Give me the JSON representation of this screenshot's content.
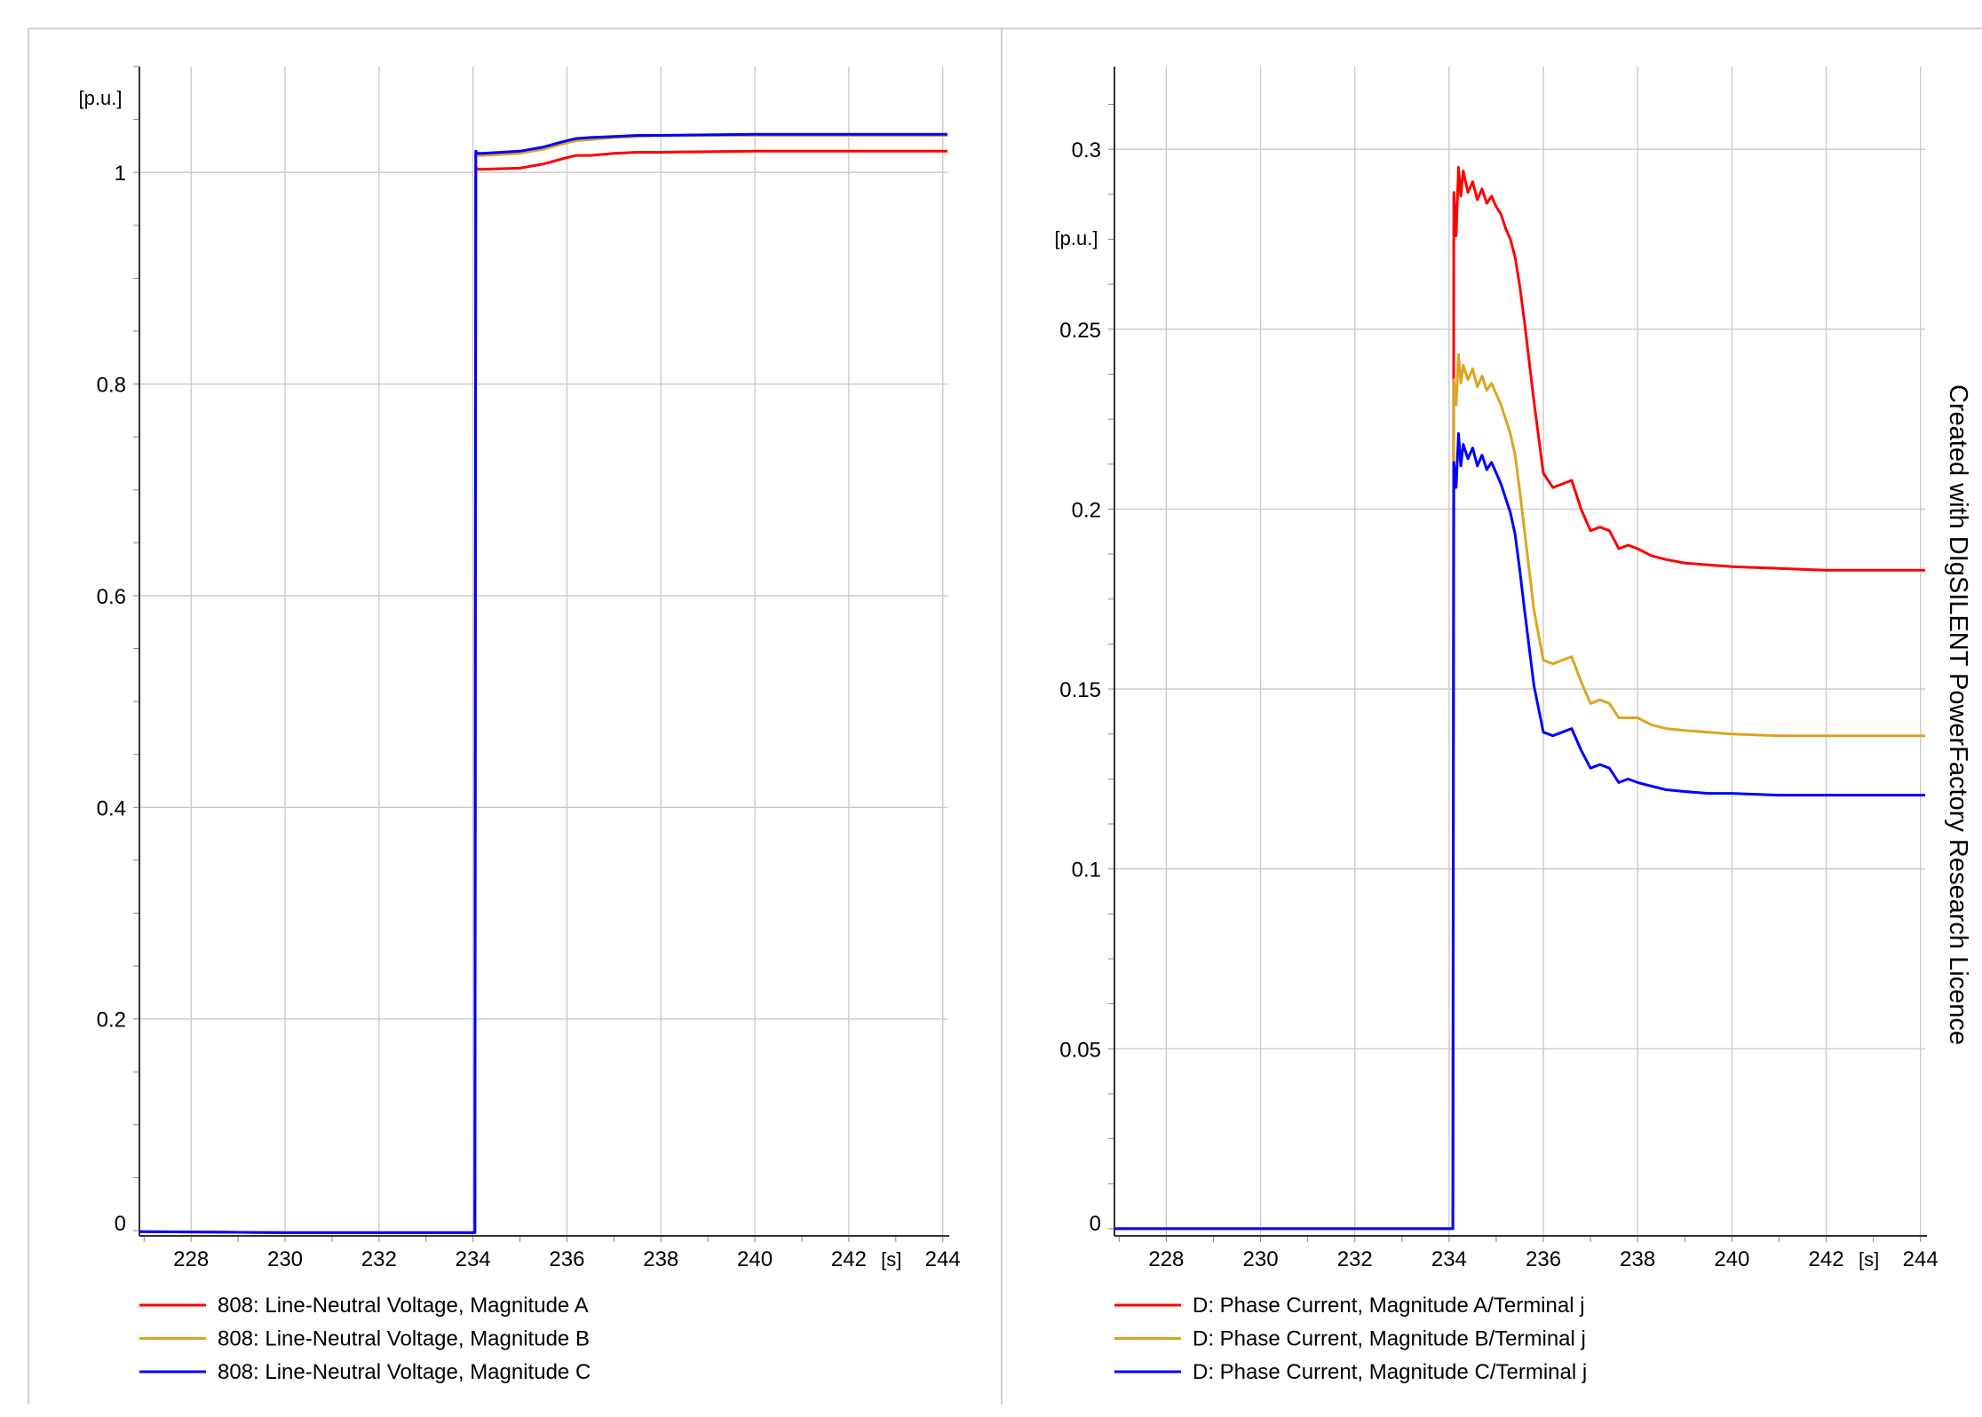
{
  "watermark": "Created with DIgSILENT PowerFactory Research Licence",
  "chart_data": [
    {
      "type": "line",
      "xunit": "[s]",
      "yunit": "[p.u.]",
      "xlim": [
        226.9,
        244.1
      ],
      "ylim": [
        -0.005,
        1.1
      ],
      "x_ticks": [
        "228",
        "230",
        "232",
        "234",
        "236",
        "238",
        "240",
        "242",
        "244"
      ],
      "y_ticks": [
        "0",
        "0.2",
        "0.4",
        "0.6",
        "0.8",
        "1"
      ],
      "grid": true,
      "legend_position": "bottom",
      "series": [
        {
          "name": "808: Line-Neutral Voltage, Magnitude A",
          "color": "#ff0000",
          "x": [
            226.9,
            230,
            232,
            233.9,
            234.0,
            234.04,
            234.06,
            234.1,
            234.2,
            235.0,
            235.5,
            236.0,
            236.2,
            236.5,
            237.0,
            237.5,
            238.0,
            240.0,
            242.0,
            244.1
          ],
          "y": [
            -0.001,
            -0.002,
            -0.002,
            -0.002,
            -0.002,
            -0.002,
            1.005,
            1.003,
            1.003,
            1.004,
            1.008,
            1.014,
            1.016,
            1.016,
            1.018,
            1.019,
            1.019,
            1.02,
            1.02,
            1.02
          ]
        },
        {
          "name": "808: Line-Neutral Voltage, Magnitude B",
          "color": "#daa520",
          "x": [
            226.9,
            230,
            232,
            233.9,
            234.0,
            234.04,
            234.06,
            234.1,
            234.2,
            235.0,
            235.5,
            236.0,
            236.2,
            236.5,
            237.0,
            237.5,
            238.0,
            240.0,
            242.0,
            244.1
          ],
          "y": [
            -0.001,
            -0.002,
            -0.002,
            -0.002,
            -0.002,
            -0.002,
            1.018,
            1.016,
            1.016,
            1.018,
            1.022,
            1.028,
            1.03,
            1.031,
            1.033,
            1.034,
            1.035,
            1.035,
            1.035,
            1.035
          ]
        },
        {
          "name": "808: Line-Neutral Voltage, Magnitude C",
          "color": "#0000ff",
          "x": [
            226.9,
            230,
            232,
            233.9,
            234.0,
            234.04,
            234.06,
            234.1,
            234.2,
            235.0,
            235.5,
            236.0,
            236.2,
            236.5,
            237.0,
            237.5,
            238.0,
            240.0,
            242.0,
            244.1
          ],
          "y": [
            -0.001,
            -0.002,
            -0.002,
            -0.002,
            -0.002,
            -0.002,
            1.02,
            1.018,
            1.018,
            1.02,
            1.024,
            1.03,
            1.032,
            1.033,
            1.034,
            1.035,
            1.035,
            1.036,
            1.036,
            1.036
          ]
        }
      ]
    },
    {
      "type": "line",
      "xunit": "[s]",
      "yunit": "[p.u.]",
      "xlim": [
        226.9,
        244.1
      ],
      "ylim": [
        -0.002,
        0.323
      ],
      "x_ticks": [
        "228",
        "230",
        "232",
        "234",
        "236",
        "238",
        "240",
        "242",
        "244"
      ],
      "y_ticks": [
        "0",
        "0.05",
        "0.1",
        "0.15",
        "0.2",
        "0.25",
        "0.3"
      ],
      "grid": true,
      "legend_position": "bottom",
      "series": [
        {
          "name": "D: Phase Current, Magnitude A/Terminal j",
          "color": "#ff0000",
          "x": [
            226.9,
            233.9,
            234.08,
            234.1,
            234.15,
            234.2,
            234.25,
            234.3,
            234.4,
            234.5,
            234.6,
            234.7,
            234.8,
            234.9,
            235.0,
            235.1,
            235.2,
            235.3,
            235.4,
            235.5,
            235.6,
            235.8,
            236.0,
            236.2,
            236.4,
            236.6,
            236.8,
            237.0,
            237.2,
            237.4,
            237.6,
            237.8,
            238.0,
            238.3,
            238.6,
            239.0,
            239.5,
            240.0,
            241.0,
            242.0,
            243.0,
            244.1
          ],
          "y": [
            0,
            0,
            0,
            0.288,
            0.276,
            0.295,
            0.287,
            0.294,
            0.288,
            0.291,
            0.286,
            0.289,
            0.285,
            0.287,
            0.284,
            0.282,
            0.278,
            0.275,
            0.27,
            0.262,
            0.252,
            0.23,
            0.21,
            0.206,
            0.207,
            0.208,
            0.2,
            0.194,
            0.195,
            0.194,
            0.189,
            0.19,
            0.189,
            0.187,
            0.186,
            0.185,
            0.1845,
            0.184,
            0.1835,
            0.183,
            0.183,
            0.183
          ]
        },
        {
          "name": "D: Phase Current, Magnitude B/Terminal j",
          "color": "#daa520",
          "x": [
            226.9,
            233.9,
            234.08,
            234.1,
            234.15,
            234.2,
            234.25,
            234.3,
            234.4,
            234.5,
            234.6,
            234.7,
            234.8,
            234.9,
            235.0,
            235.1,
            235.2,
            235.3,
            235.4,
            235.5,
            235.6,
            235.8,
            236.0,
            236.2,
            236.4,
            236.6,
            236.8,
            237.0,
            237.2,
            237.4,
            237.6,
            237.8,
            238.0,
            238.3,
            238.6,
            239.0,
            239.5,
            240.0,
            241.0,
            242.0,
            243.0,
            244.1
          ],
          "y": [
            0,
            0,
            0,
            0.236,
            0.229,
            0.243,
            0.235,
            0.24,
            0.236,
            0.239,
            0.234,
            0.237,
            0.233,
            0.235,
            0.232,
            0.229,
            0.225,
            0.221,
            0.215,
            0.205,
            0.194,
            0.172,
            0.158,
            0.157,
            0.158,
            0.159,
            0.152,
            0.146,
            0.147,
            0.146,
            0.142,
            0.142,
            0.142,
            0.14,
            0.139,
            0.1385,
            0.138,
            0.1375,
            0.137,
            0.137,
            0.137,
            0.137
          ]
        },
        {
          "name": "D: Phase Current, Magnitude C/Terminal j",
          "color": "#0000ff",
          "x": [
            226.9,
            233.9,
            234.08,
            234.1,
            234.15,
            234.2,
            234.25,
            234.3,
            234.4,
            234.5,
            234.6,
            234.7,
            234.8,
            234.9,
            235.0,
            235.1,
            235.2,
            235.3,
            235.4,
            235.5,
            235.6,
            235.8,
            236.0,
            236.2,
            236.4,
            236.6,
            236.8,
            237.0,
            237.2,
            237.4,
            237.6,
            237.8,
            238.0,
            238.3,
            238.6,
            239.0,
            239.5,
            240.0,
            241.0,
            242.0,
            243.0,
            244.1
          ],
          "y": [
            0,
            0,
            0,
            0.213,
            0.206,
            0.221,
            0.212,
            0.218,
            0.214,
            0.217,
            0.212,
            0.215,
            0.211,
            0.213,
            0.21,
            0.207,
            0.203,
            0.199,
            0.193,
            0.183,
            0.172,
            0.151,
            0.138,
            0.137,
            0.138,
            0.139,
            0.133,
            0.128,
            0.129,
            0.128,
            0.124,
            0.125,
            0.124,
            0.123,
            0.122,
            0.1215,
            0.121,
            0.121,
            0.1205,
            0.1205,
            0.1205,
            0.1205
          ]
        }
      ]
    }
  ]
}
